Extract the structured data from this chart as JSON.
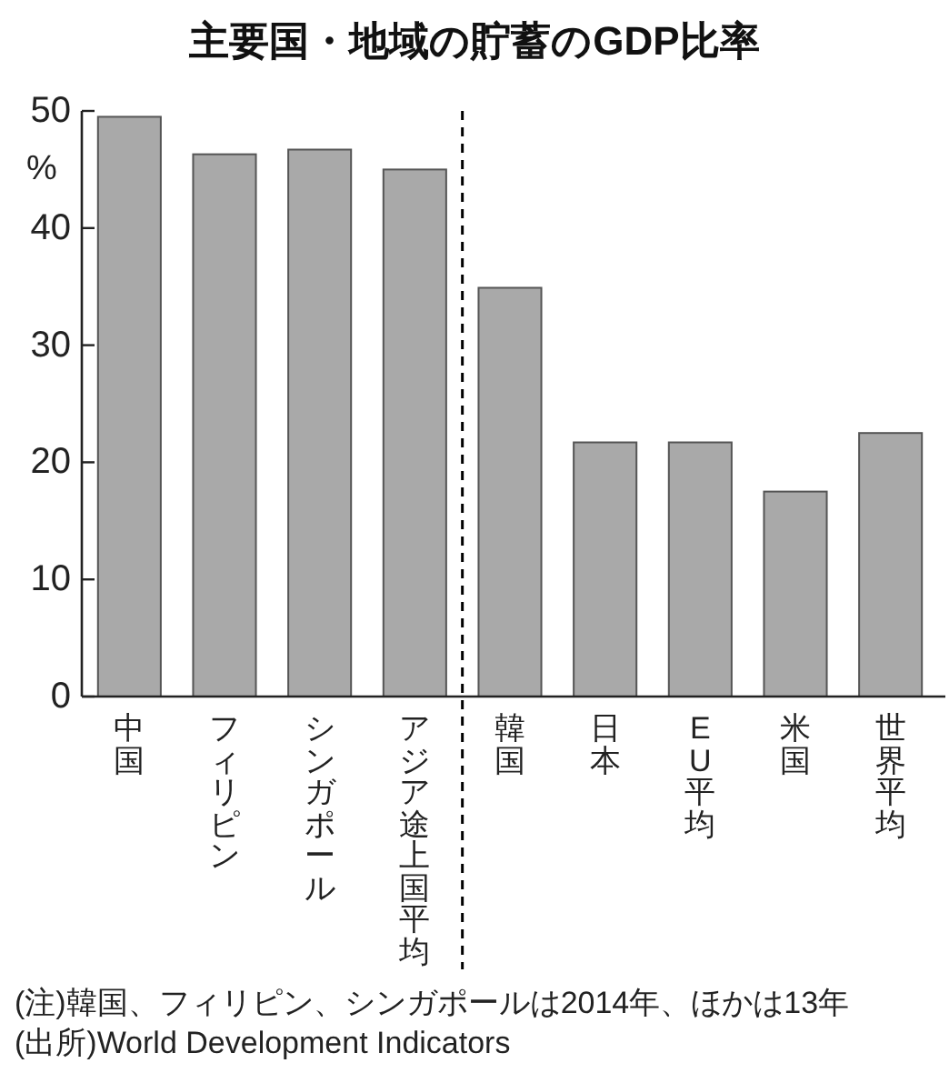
{
  "chart_data": {
    "type": "bar",
    "title": "主要国・地域の貯蓄のGDP比率",
    "ylabel": "%",
    "categories": [
      "中国",
      "フィリピン",
      "シンガポール",
      "アジア途上国平均",
      "韓国",
      "日本",
      "EU平均",
      "米国",
      "世界平均"
    ],
    "values": [
      49.5,
      46.3,
      46.7,
      45.0,
      34.9,
      21.7,
      21.7,
      17.5,
      22.5
    ],
    "color": "#a9a9a9",
    "ylim": [
      0,
      50
    ],
    "yticks": [
      0,
      10,
      20,
      30,
      40,
      50
    ],
    "grid": false,
    "annotations": [
      "(注)韓国、フィリピン、シンガポールは2014年、ほかは13年",
      "(出所)World Development Indicators"
    ]
  }
}
